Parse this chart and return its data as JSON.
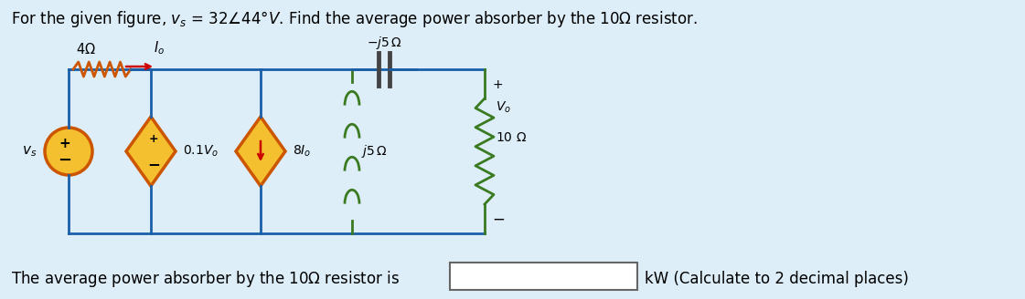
{
  "bg_color": "#ddeef8",
  "wire_color": "#1a5fa8",
  "resistor_color": "#cc5500",
  "source_fill": "#f5c030",
  "source_edge": "#cc5500",
  "inductor_color": "#3a7a20",
  "cap_color": "#3a7a20",
  "text_color": "#000000",
  "arrow_color": "#cc0000",
  "title": "For the given figure, $v_s$ = 32$\\angle$44°$V$. Find the average power absorber by the 10$\\Omega$ resistor.",
  "bottom_left": "The average power absorber by the 10$\\Omega$ resistor is",
  "bottom_right": "kW (Calculate to 2 decimal places)"
}
